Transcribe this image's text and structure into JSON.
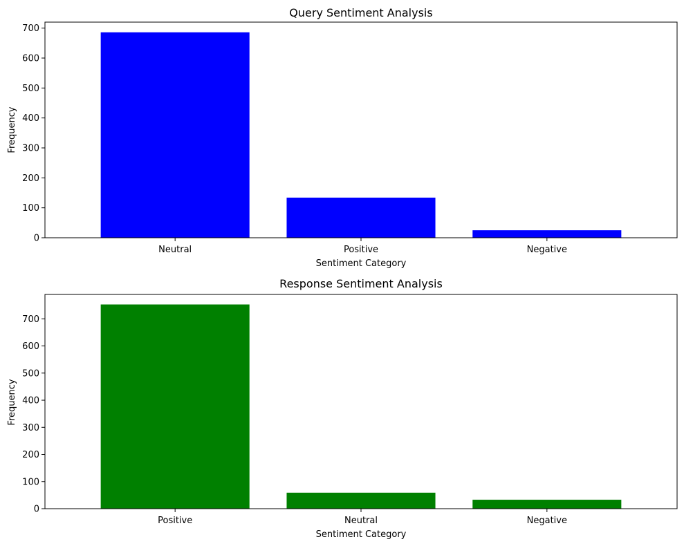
{
  "chart_data": [
    {
      "type": "bar",
      "title": "Query Sentiment Analysis",
      "xlabel": "Sentiment Category",
      "ylabel": "Frequency",
      "categories": [
        "Neutral",
        "Positive",
        "Negative"
      ],
      "values": [
        686,
        134,
        25
      ],
      "ylim": [
        0,
        720
      ],
      "yticks": [
        0,
        100,
        200,
        300,
        400,
        500,
        600,
        700
      ],
      "bar_color": "#0000ff",
      "grid": false
    },
    {
      "type": "bar",
      "title": "Response Sentiment Analysis",
      "xlabel": "Sentiment Category",
      "ylabel": "Frequency",
      "categories": [
        "Positive",
        "Neutral",
        "Negative"
      ],
      "values": [
        753,
        59,
        33
      ],
      "ylim": [
        0,
        790
      ],
      "yticks": [
        0,
        100,
        200,
        300,
        400,
        500,
        600,
        700
      ],
      "bar_color": "#008000",
      "grid": false
    }
  ]
}
